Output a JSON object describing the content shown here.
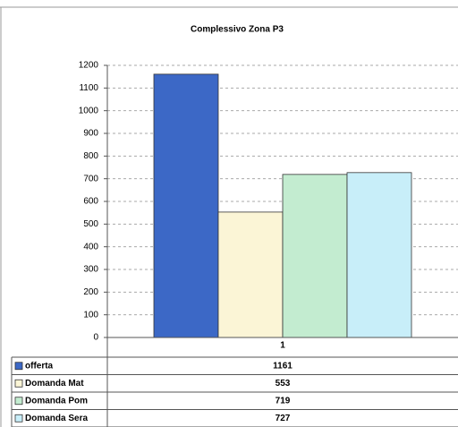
{
  "chart_data": {
    "type": "bar",
    "title": "Complessivo  Zona P3",
    "categories": [
      "1"
    ],
    "series": [
      {
        "name": "offerta",
        "color": "#3c68c6",
        "values": [
          1161
        ]
      },
      {
        "name": "Domanda Mat",
        "color": "#fbf5d6",
        "values": [
          553
        ]
      },
      {
        "name": "Domanda Pom",
        "color": "#c3ecd0",
        "values": [
          719
        ]
      },
      {
        "name": "Domanda Sera",
        "color": "#c8eef9",
        "values": [
          727
        ]
      }
    ],
    "ylim": [
      0,
      1200
    ],
    "yticks": [
      0,
      100,
      200,
      300,
      400,
      500,
      600,
      700,
      800,
      900,
      1000,
      1100,
      1200
    ],
    "grid": true
  }
}
